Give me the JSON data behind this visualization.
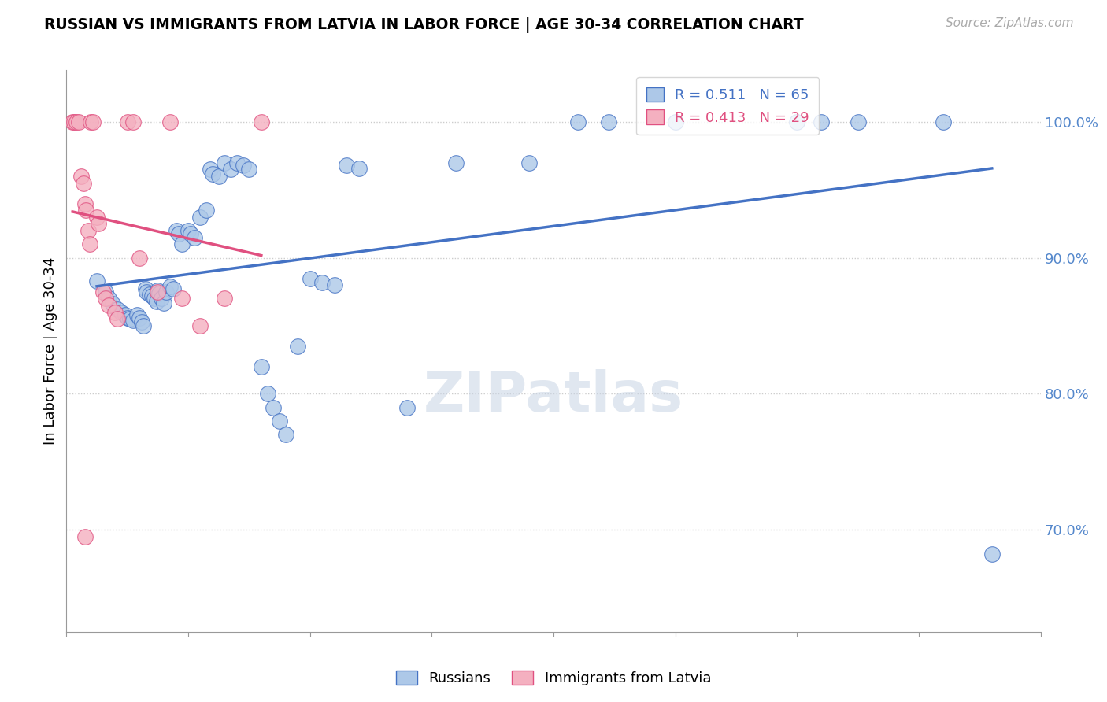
{
  "title": "RUSSIAN VS IMMIGRANTS FROM LATVIA IN LABOR FORCE | AGE 30-34 CORRELATION CHART",
  "source": "Source: ZipAtlas.com",
  "ylabel": "In Labor Force | Age 30-34",
  "y_tick_labels": [
    "70.0%",
    "80.0%",
    "90.0%",
    "100.0%"
  ],
  "y_tick_values": [
    0.7,
    0.8,
    0.9,
    1.0
  ],
  "x_min": 0.0,
  "x_max": 0.8,
  "y_min": 0.625,
  "y_max": 1.038,
  "blue_r": "0.511",
  "blue_n": "65",
  "pink_r": "0.413",
  "pink_n": "29",
  "blue_face": "#adc8e8",
  "pink_face": "#f4b0c0",
  "trend_blue": "#4472c4",
  "trend_pink": "#e05080",
  "axis_label_color": "#5588cc",
  "russians_x": [
    0.025,
    0.032,
    0.035,
    0.038,
    0.042,
    0.045,
    0.048,
    0.05,
    0.052,
    0.055,
    0.058,
    0.06,
    0.062,
    0.063,
    0.065,
    0.066,
    0.068,
    0.07,
    0.072,
    0.074,
    0.075,
    0.076,
    0.078,
    0.08,
    0.082,
    0.085,
    0.088,
    0.09,
    0.092,
    0.095,
    0.1,
    0.102,
    0.105,
    0.11,
    0.115,
    0.118,
    0.12,
    0.125,
    0.13,
    0.135,
    0.14,
    0.145,
    0.15,
    0.16,
    0.165,
    0.17,
    0.175,
    0.18,
    0.19,
    0.2,
    0.21,
    0.22,
    0.23,
    0.24,
    0.28,
    0.32,
    0.38,
    0.42,
    0.445,
    0.5,
    0.6,
    0.62,
    0.65,
    0.72,
    0.76
  ],
  "russians_y": [
    0.883,
    0.875,
    0.87,
    0.866,
    0.862,
    0.86,
    0.858,
    0.856,
    0.855,
    0.854,
    0.858,
    0.856,
    0.853,
    0.85,
    0.877,
    0.875,
    0.873,
    0.872,
    0.87,
    0.868,
    0.876,
    0.874,
    0.87,
    0.867,
    0.875,
    0.879,
    0.877,
    0.92,
    0.918,
    0.91,
    0.92,
    0.918,
    0.915,
    0.93,
    0.935,
    0.965,
    0.962,
    0.96,
    0.97,
    0.965,
    0.97,
    0.968,
    0.965,
    0.82,
    0.8,
    0.79,
    0.78,
    0.77,
    0.835,
    0.885,
    0.882,
    0.88,
    0.968,
    0.966,
    0.79,
    0.97,
    0.97,
    1.0,
    1.0,
    1.0,
    1.0,
    1.0,
    1.0,
    1.0,
    0.682
  ],
  "latvia_x": [
    0.005,
    0.006,
    0.008,
    0.01,
    0.012,
    0.014,
    0.015,
    0.016,
    0.018,
    0.019,
    0.02,
    0.022,
    0.025,
    0.026,
    0.03,
    0.032,
    0.035,
    0.04,
    0.042,
    0.05,
    0.055,
    0.06,
    0.075,
    0.085,
    0.095,
    0.11,
    0.13,
    0.16,
    0.015
  ],
  "latvia_y": [
    1.0,
    1.0,
    1.0,
    1.0,
    0.96,
    0.955,
    0.94,
    0.935,
    0.92,
    0.91,
    1.0,
    1.0,
    0.93,
    0.925,
    0.875,
    0.87,
    0.865,
    0.86,
    0.855,
    1.0,
    1.0,
    0.9,
    0.875,
    1.0,
    0.87,
    0.85,
    0.87,
    1.0,
    0.695
  ]
}
